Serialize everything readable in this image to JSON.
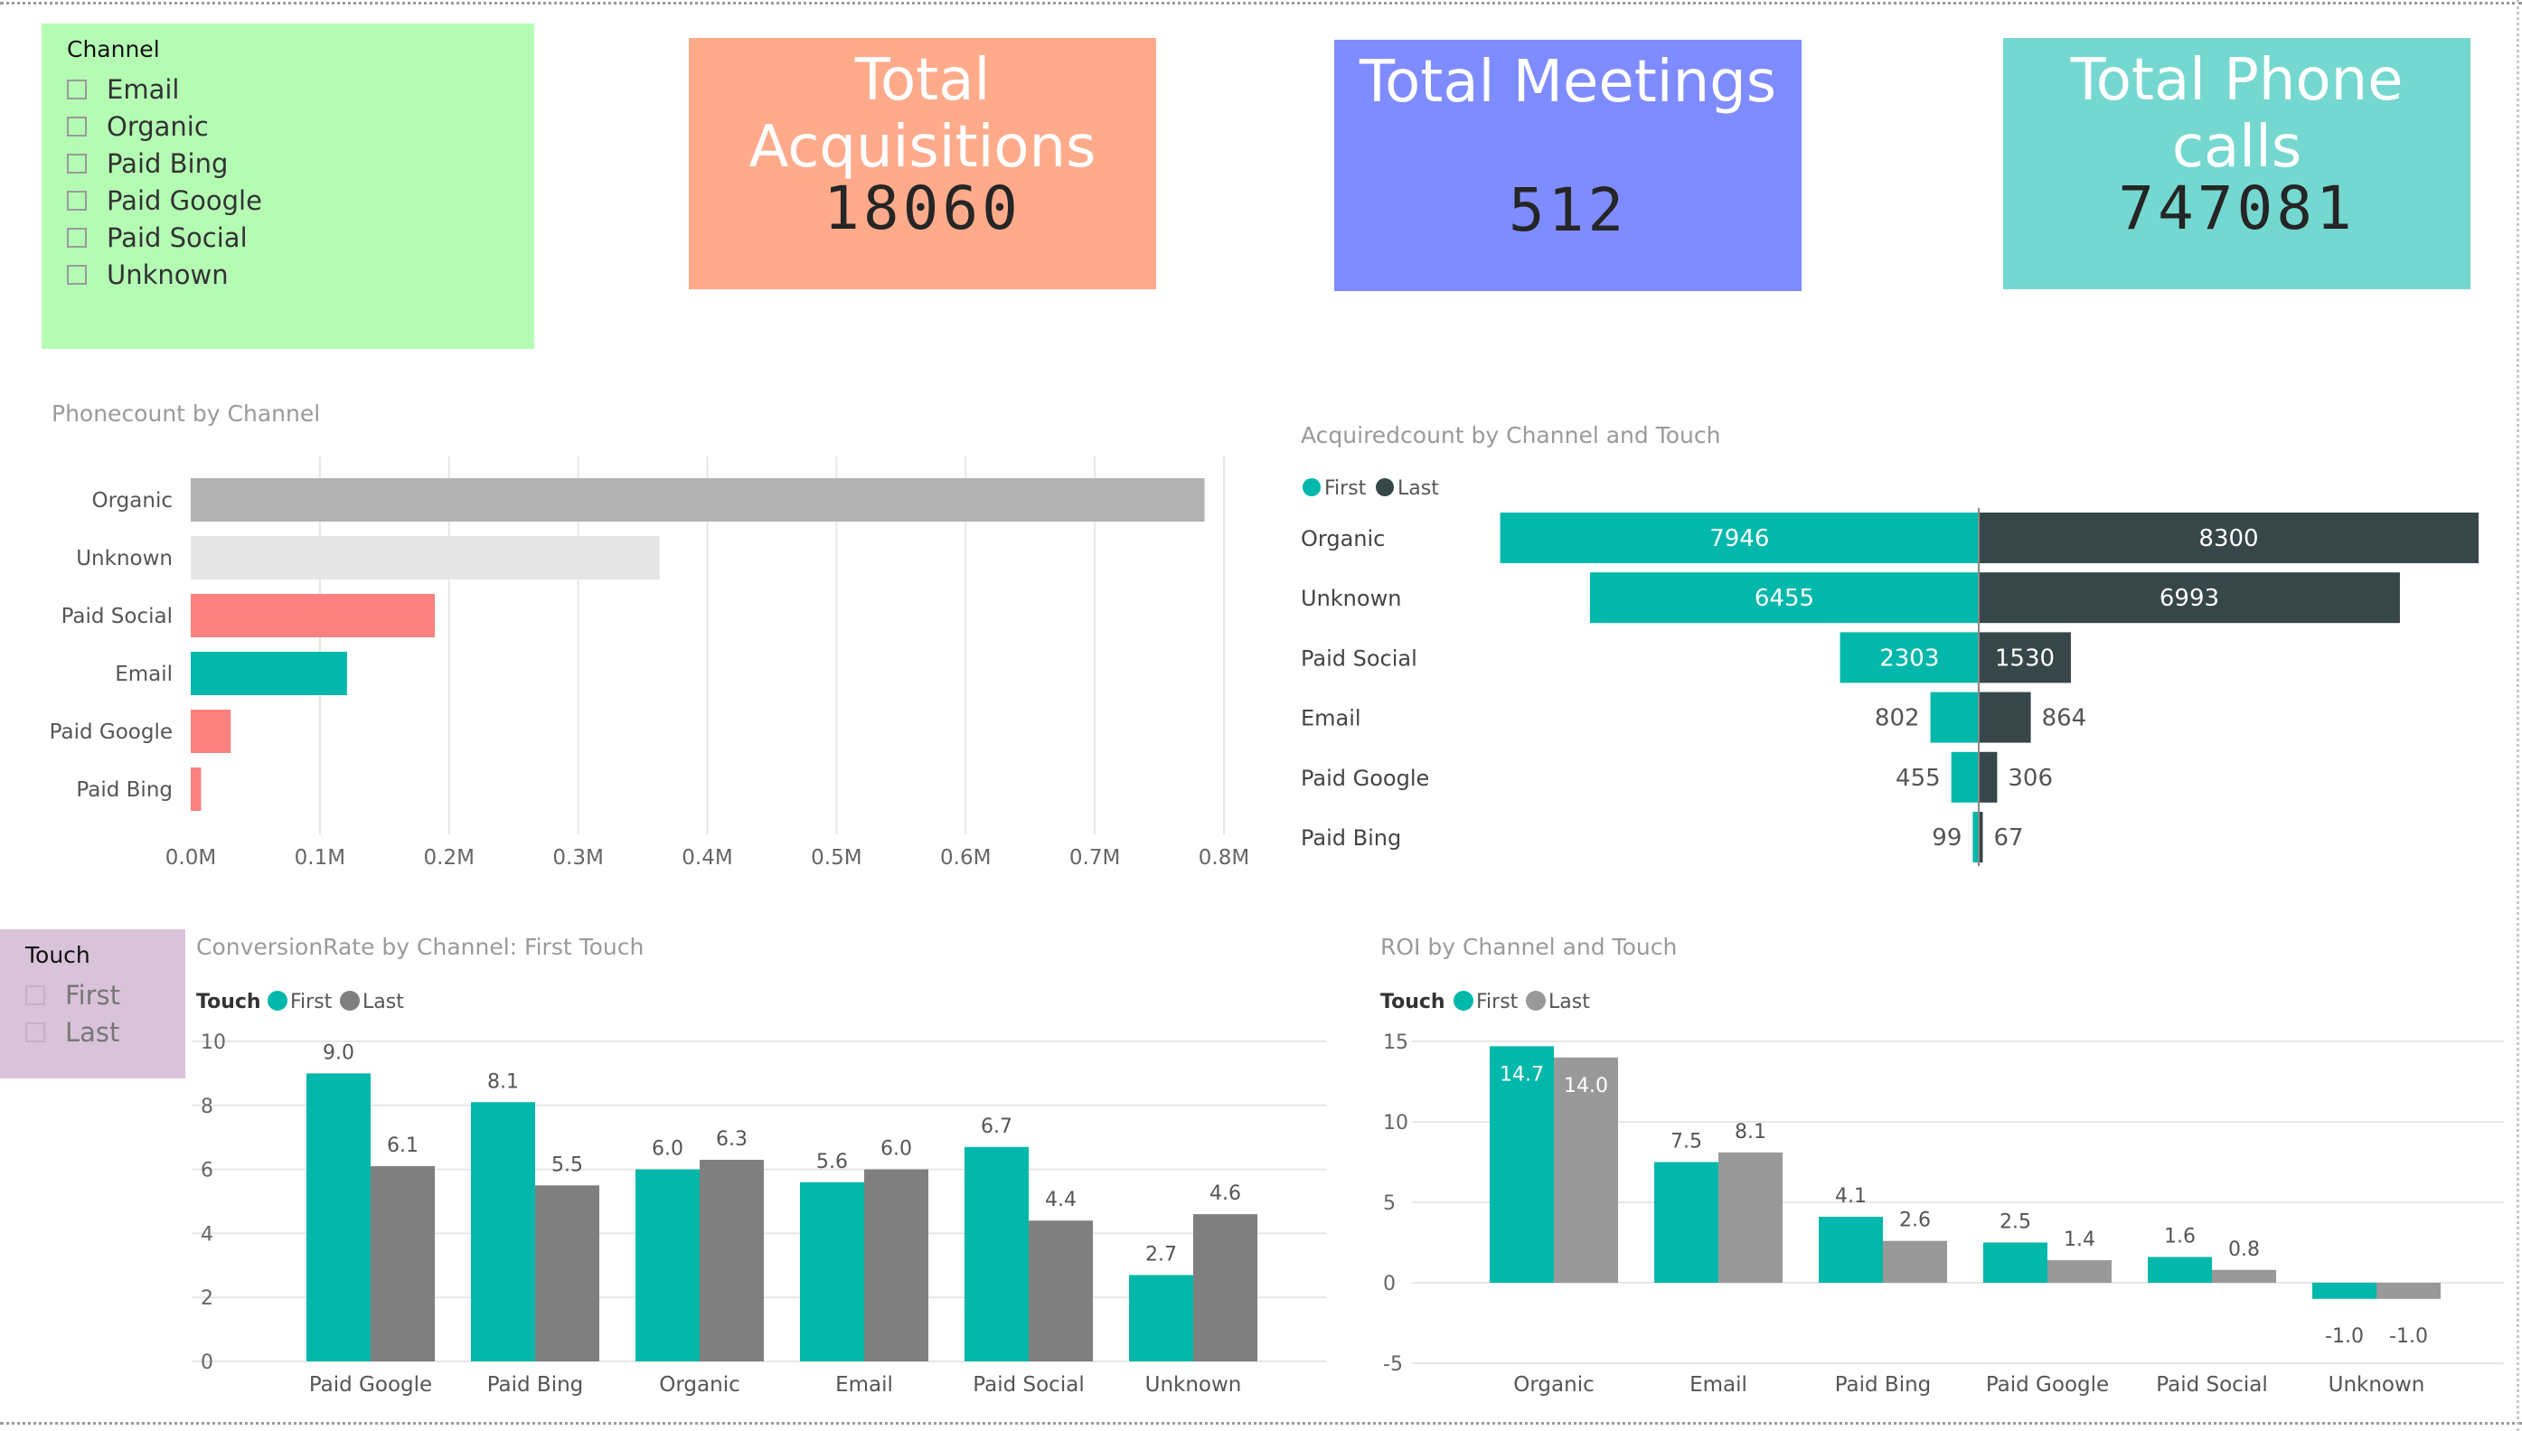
{
  "channel_slicer": {
    "title": "Channel",
    "items": [
      "Email",
      "Organic",
      "Paid Bing",
      "Paid Google",
      "Paid Social",
      "Unknown"
    ],
    "background": "#b4fcb4"
  },
  "touch_slicer": {
    "title": "Touch",
    "items": [
      "First",
      "Last"
    ],
    "background": "#d9c3d9"
  },
  "cards": [
    {
      "title": "Total Acquisitions",
      "value": "18060",
      "color": "#ffab8b"
    },
    {
      "title": "Total Meetings",
      "value": "512",
      "color": "#7f8cff"
    },
    {
      "title": "Total Phone calls",
      "value": "747081",
      "color": "#74d8d0"
    }
  ],
  "colors": {
    "teal": "#01b8aa",
    "dark": "#374649",
    "gray": "#7f7f7f",
    "lightgray": "#999999",
    "salmon": "#fd8080",
    "silver": "#b3b3b3",
    "pale": "#e6e6e6"
  },
  "chart_data": [
    {
      "type": "bar",
      "orientation": "horizontal",
      "title": "Phonecount by Channel",
      "categories": [
        "Organic",
        "Unknown",
        "Paid Social",
        "Email",
        "Paid Google",
        "Paid Bing"
      ],
      "values": [
        785000,
        363000,
        189000,
        121000,
        31000,
        8000
      ],
      "bar_colors": [
        "#b3b3b3",
        "#e6e6e6",
        "#fd8080",
        "#01b8aa",
        "#fd8080",
        "#fd8080"
      ],
      "xticks": [
        "0.0M",
        "0.1M",
        "0.2M",
        "0.3M",
        "0.4M",
        "0.5M",
        "0.6M",
        "0.7M",
        "0.8M"
      ],
      "xlim": [
        0,
        800000
      ],
      "grid": true
    },
    {
      "type": "bar",
      "orientation": "horizontal-diverging",
      "title": "Acquiredcount by Channel and Touch",
      "categories": [
        "Organic",
        "Unknown",
        "Paid Social",
        "Email",
        "Paid Google",
        "Paid Bing"
      ],
      "series": [
        {
          "name": "First",
          "values": [
            7946,
            6455,
            2303,
            802,
            455,
            99
          ],
          "color": "#01b8aa"
        },
        {
          "name": "Last",
          "values": [
            8300,
            6993,
            1530,
            864,
            306,
            67
          ],
          "color": "#374649"
        }
      ],
      "legend": "top-left"
    },
    {
      "type": "bar",
      "title": "ConversionRate by Channel: First Touch",
      "legend_title": "Touch",
      "categories": [
        "Paid Google",
        "Paid Bing",
        "Organic",
        "Email",
        "Paid Social",
        "Unknown"
      ],
      "series": [
        {
          "name": "First",
          "values": [
            9.0,
            8.1,
            6.0,
            5.6,
            6.7,
            2.7
          ],
          "color": "#01b8aa"
        },
        {
          "name": "Last",
          "values": [
            6.1,
            5.5,
            6.3,
            6.0,
            4.4,
            4.6
          ],
          "color": "#7f7f7f"
        }
      ],
      "yticks": [
        "0",
        "2",
        "4",
        "6",
        "8",
        "10"
      ],
      "ylim": [
        0,
        10
      ],
      "grid": true,
      "legend": "top-left"
    },
    {
      "type": "bar",
      "title": "ROI by Channel and Touch",
      "legend_title": "Touch",
      "categories": [
        "Organic",
        "Email",
        "Paid Bing",
        "Paid Google",
        "Paid Social",
        "Unknown"
      ],
      "series": [
        {
          "name": "First",
          "values": [
            14.7,
            7.5,
            4.1,
            2.5,
            1.6,
            -1.0
          ],
          "color": "#01b8aa"
        },
        {
          "name": "Last",
          "values": [
            14.0,
            8.1,
            2.6,
            1.4,
            0.8,
            -1.0
          ],
          "color": "#999999"
        }
      ],
      "yticks": [
        "-5",
        "0",
        "5",
        "10",
        "15"
      ],
      "ylim": [
        -5,
        15
      ],
      "grid": true,
      "legend": "top-left"
    }
  ]
}
